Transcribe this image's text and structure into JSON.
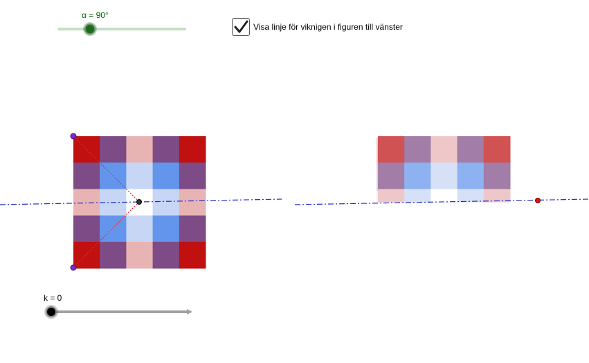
{
  "alpha_slider": {
    "label": "α = 90°",
    "value_deg": 90
  },
  "checkbox": {
    "label": "Visa linje för viknigen i figuren till vänster",
    "checked": true
  },
  "k_slider": {
    "label": "k = 0",
    "value": 0
  },
  "colors": {
    "red": "#c01010",
    "purple": "#7d4c86",
    "pink": "#e8b3b3",
    "blue": "#6495ed",
    "light_blue": "#c7d6f5",
    "white": "#ffffff",
    "fold_line": "#1f2ccc",
    "fold_hint": "#e03030",
    "vertex_point": "#7a29d1",
    "red_point": "#e01010",
    "center_point": "#333333"
  }
}
